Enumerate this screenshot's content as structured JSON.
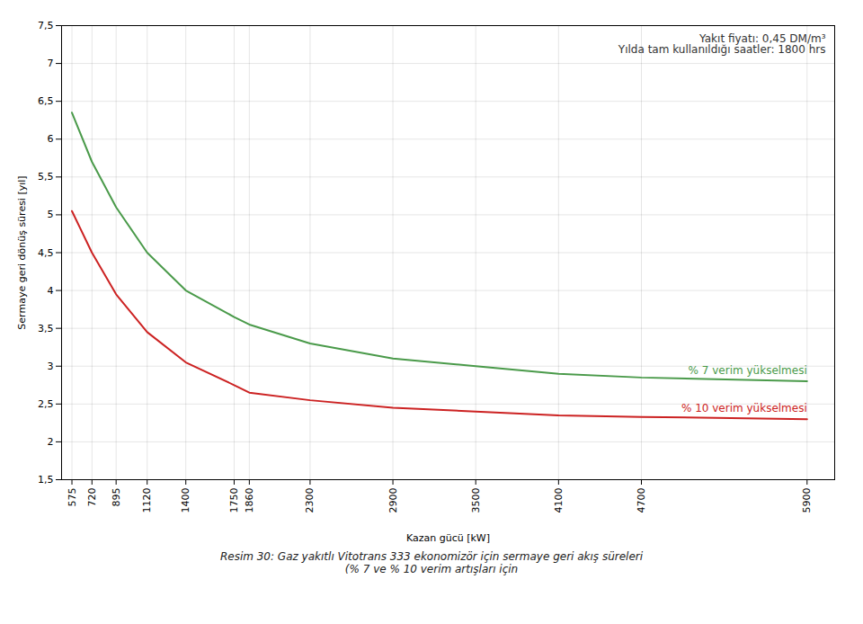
{
  "chart_data": {
    "type": "line",
    "xlabel": "Kazan gücü [kW]",
    "ylabel": "Sermaye geri dönüş süresi [yıl]",
    "x": [
      575,
      720,
      895,
      1120,
      1400,
      1750,
      1860,
      2300,
      2900,
      3500,
      4100,
      4700,
      5900
    ],
    "series": [
      {
        "name": "% 7 verim yükselmesi",
        "color": "#4a9a4a",
        "values": [
          6.35,
          5.7,
          5.1,
          4.5,
          4.0,
          3.65,
          3.55,
          3.3,
          3.1,
          3.0,
          2.9,
          2.85,
          2.8
        ]
      },
      {
        "name": "% 10 verim yükselmesi",
        "color": "#cc2222",
        "values": [
          5.05,
          4.5,
          3.95,
          3.45,
          3.05,
          2.75,
          2.65,
          2.55,
          2.45,
          2.4,
          2.35,
          2.33,
          2.3
        ]
      }
    ],
    "xlim": [
      500,
      6100
    ],
    "xticks": [
      575,
      720,
      895,
      1120,
      1400,
      1750,
      1860,
      2300,
      2900,
      3500,
      4100,
      4700,
      5900
    ],
    "ylim": [
      1.5,
      7.5
    ],
    "yticks": [
      {
        "value": 1.5,
        "label": "1,5"
      },
      2,
      {
        "value": 2.5,
        "label": "2,5"
      },
      3,
      {
        "value": 3.5,
        "label": "3,5"
      },
      4,
      {
        "value": 4.5,
        "label": "4,5"
      },
      5,
      {
        "value": 5.5,
        "label": "5,5"
      },
      6,
      {
        "value": 6.5,
        "label": "6,5"
      },
      7,
      {
        "value": 7.5,
        "label": "7,5"
      }
    ],
    "grid": true,
    "annotations": [
      "Yakıt fiyatı: 0,45 DM/m³",
      "Yılda tam kullanıldığı saatler: 1800 hrs"
    ],
    "caption": "Resim 30: Gaz yakıtlı Vitotrans 333 ekonomizör için sermaye geri akış süreleri\n(% 7 ve % 10 verim artışları için"
  }
}
